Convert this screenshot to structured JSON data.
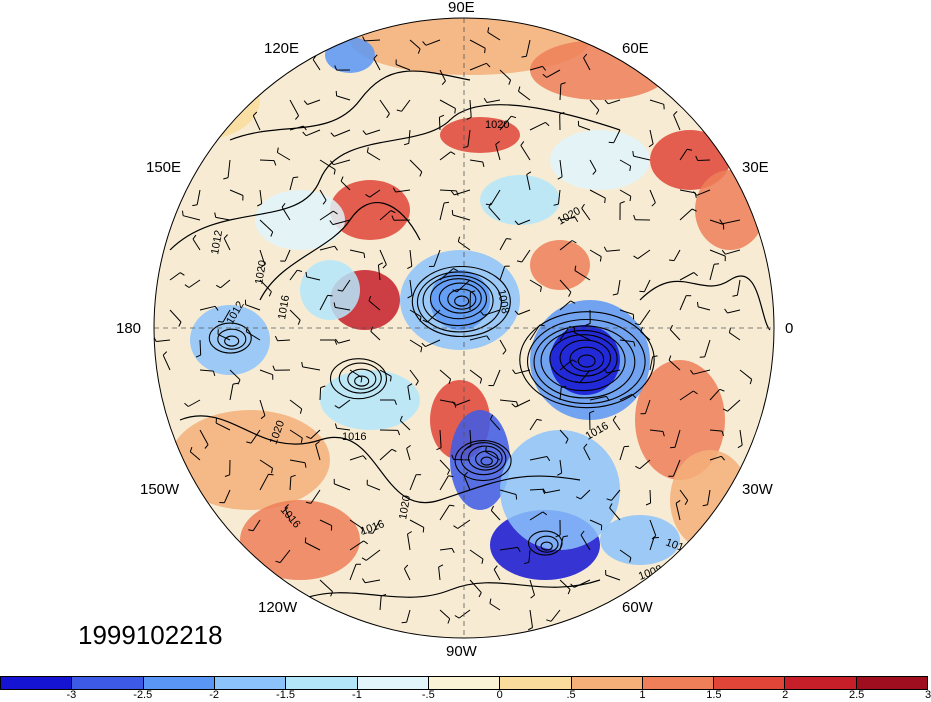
{
  "map": {
    "projection": "north-polar-stereographic",
    "longitude_labels": {
      "90E": "90E",
      "60E": "60E",
      "30E": "30E",
      "0": "0",
      "30W": "30W",
      "60W": "60W",
      "90W": "90W",
      "120W": "120W",
      "150W": "150W",
      "180": "180",
      "150E": "150E",
      "120E": "120E"
    },
    "date": "1999102218",
    "contour_labels": [
      "1020",
      "1012",
      "1020",
      "1016",
      "1020",
      "1016",
      "1016",
      "1020",
      "1008",
      "1016",
      "1012",
      "1008",
      "1020",
      "1016",
      "1012"
    ],
    "features": [
      "shaded-anomaly-field",
      "pressure-contours",
      "wind-barbs",
      "coastlines"
    ]
  },
  "colorbar": {
    "colors": [
      "#1414d2",
      "#3c5ae6",
      "#5a96f5",
      "#8cc3fa",
      "#b4e6fa",
      "#e1f5fb",
      "#fbf3d6",
      "#fadd9c",
      "#f5b07a",
      "#ee7f58",
      "#e04538",
      "#c61f2a",
      "#9e0e1e"
    ],
    "tick_labels": [
      "-3",
      "-2.5",
      "-2",
      "-1.5",
      "-1",
      "-.5",
      "0",
      ".5",
      "1",
      "1.5",
      "2",
      "2.5",
      "3"
    ]
  }
}
